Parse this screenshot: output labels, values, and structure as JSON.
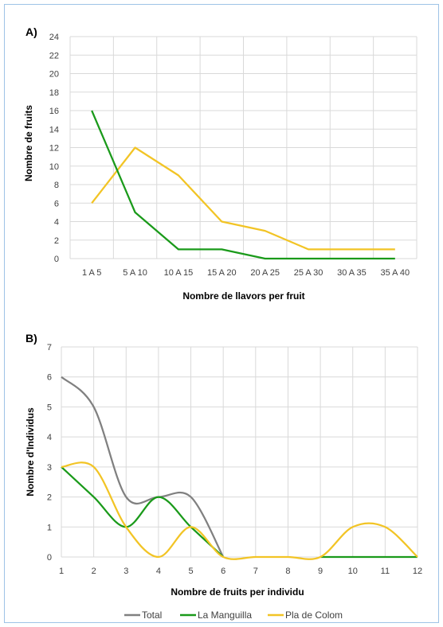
{
  "chart_data": [
    {
      "type": "line",
      "panel_label": "A)",
      "title": "",
      "xlabel": "Nombre de llavors per fruit",
      "ylabel": "Nombre de fruits",
      "categories": [
        "1 A 5",
        "5 A 10",
        "10 A 15",
        "15 A 20",
        "20 A 25",
        "25 A 30",
        "30 A 35",
        "35 A 40"
      ],
      "ylim": [
        0,
        24
      ],
      "yticks": [
        0,
        2,
        4,
        6,
        8,
        10,
        12,
        14,
        16,
        18,
        20,
        22,
        24
      ],
      "grid": true,
      "series": [
        {
          "name": "La Manguilla",
          "color": "#1a9a1a",
          "values": [
            16,
            5,
            1,
            1,
            0,
            0,
            0,
            0
          ]
        },
        {
          "name": "Pla de Colom",
          "color": "#f2c425",
          "values": [
            6,
            12,
            9,
            4,
            3,
            1,
            1,
            1
          ]
        }
      ]
    },
    {
      "type": "line",
      "panel_label": "B)",
      "title": "",
      "xlabel": "Nombre de fruits per individu",
      "ylabel": "Nombre d'Individus",
      "x": [
        1,
        2,
        3,
        4,
        5,
        6,
        7,
        8,
        9,
        10,
        11,
        12
      ],
      "xlim": [
        1,
        12
      ],
      "ylim": [
        0,
        7
      ],
      "yticks": [
        0,
        1,
        2,
        3,
        4,
        5,
        6,
        7
      ],
      "grid": true,
      "smooth": true,
      "legend_position": "bottom",
      "series": [
        {
          "name": "Total",
          "color": "#808080",
          "values": [
            6,
            5,
            2,
            2,
            2,
            0,
            null,
            null,
            null,
            null,
            null,
            null
          ]
        },
        {
          "name": "La Manguilla",
          "color": "#1a9a1a",
          "values": [
            3,
            2,
            1,
            2,
            1,
            0,
            null,
            null,
            0,
            0,
            0,
            0
          ]
        },
        {
          "name": "Pla de Colom",
          "color": "#f2c425",
          "values": [
            3,
            3,
            1,
            0,
            1,
            0,
            0,
            0,
            0,
            1,
            1,
            0
          ]
        }
      ]
    }
  ]
}
